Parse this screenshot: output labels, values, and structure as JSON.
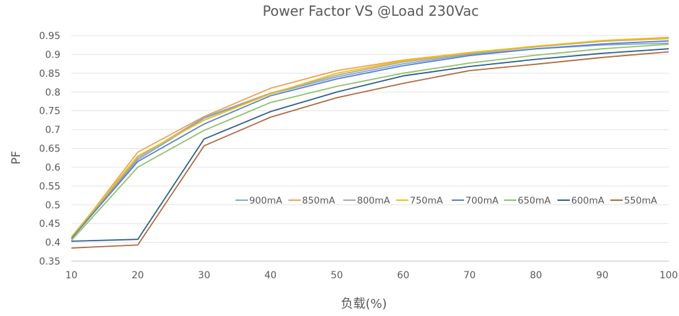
{
  "chart_data": {
    "type": "line",
    "title": "Power Factor VS @Load 230Vac",
    "xlabel": "负载(%)",
    "ylabel": "PF",
    "x": [
      10,
      20,
      30,
      40,
      50,
      60,
      70,
      80,
      90,
      100
    ],
    "xlim": [
      10,
      100
    ],
    "ylim": [
      0.35,
      0.95
    ],
    "yticks": [
      "0.35",
      "0.4",
      "0.45",
      "0.5",
      "0.55",
      "0.6",
      "0.65",
      "0.7",
      "0.75",
      "0.8",
      "0.85",
      "0.9",
      "0.95"
    ],
    "xticks": [
      "10",
      "20",
      "30",
      "40",
      "50",
      "60",
      "70",
      "80",
      "90",
      "100"
    ],
    "grid": true,
    "legend_position": "inside-lower-right",
    "series": [
      {
        "name": "900mA",
        "color": "#7fa7d3",
        "values": [
          0.41,
          0.62,
          0.73,
          0.795,
          0.84,
          0.875,
          0.9,
          0.915,
          0.925,
          0.93
        ]
      },
      {
        "name": "850mA",
        "color": "#f0a050",
        "values": [
          0.41,
          0.64,
          0.735,
          0.81,
          0.857,
          0.885,
          0.905,
          0.922,
          0.937,
          0.945
        ]
      },
      {
        "name": "800mA",
        "color": "#a8a8a8",
        "values": [
          0.41,
          0.625,
          0.733,
          0.797,
          0.845,
          0.88,
          0.903,
          0.92,
          0.935,
          0.942
        ]
      },
      {
        "name": "750mA",
        "color": "#f5c000",
        "values": [
          0.415,
          0.63,
          0.725,
          0.795,
          0.85,
          0.883,
          0.905,
          0.922,
          0.937,
          0.943
        ]
      },
      {
        "name": "700mA",
        "color": "#5a7fc8",
        "values": [
          0.41,
          0.615,
          0.715,
          0.79,
          0.835,
          0.87,
          0.897,
          0.915,
          0.928,
          0.936
        ]
      },
      {
        "name": "650mA",
        "color": "#8fc166",
        "values": [
          0.405,
          0.6,
          0.698,
          0.772,
          0.815,
          0.85,
          0.877,
          0.898,
          0.915,
          0.927
        ]
      },
      {
        "name": "600mA",
        "color": "#2f5f8a",
        "values": [
          0.403,
          0.408,
          0.675,
          0.748,
          0.8,
          0.843,
          0.868,
          0.887,
          0.903,
          0.915
        ]
      },
      {
        "name": "550mA",
        "color": "#b06a3c",
        "values": [
          0.385,
          0.393,
          0.657,
          0.733,
          0.785,
          0.823,
          0.857,
          0.874,
          0.892,
          0.907
        ]
      }
    ]
  }
}
